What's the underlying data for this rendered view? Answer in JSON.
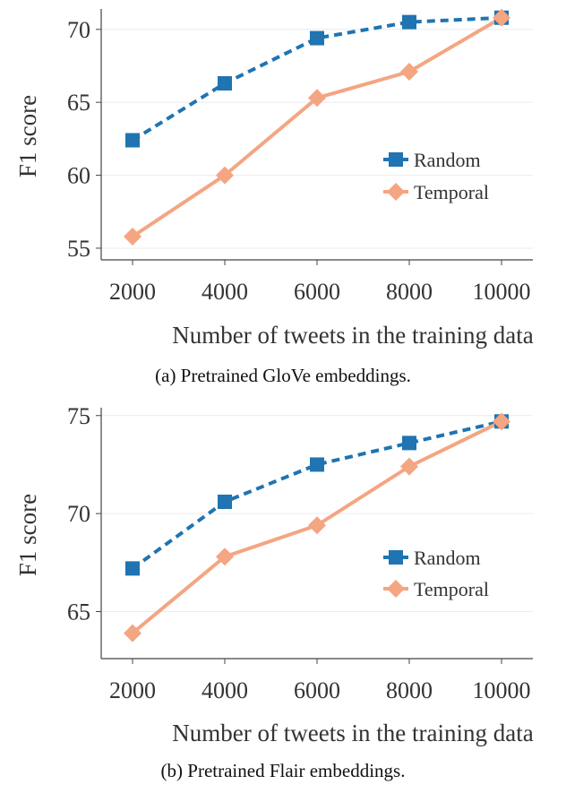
{
  "colors": {
    "random": "#1f74b1",
    "temporal": "#f4a582",
    "axis": "#444444",
    "grid": "#ececec",
    "text": "#333333"
  },
  "chart_data": [
    {
      "type": "line",
      "caption": "(a) Pretrained GloVe embeddings.",
      "xlabel": "Number of tweets in the training data",
      "ylabel": "F1 score",
      "x": [
        2000,
        4000,
        6000,
        8000,
        10000
      ],
      "x_tick_labels": [
        "2000",
        "4000",
        "6000",
        "8000",
        "10000"
      ],
      "y_ticks": [
        55,
        60,
        65,
        70
      ],
      "ylim": [
        54.2,
        71.4
      ],
      "grid": "horizontal",
      "legend_position": "right",
      "series": [
        {
          "name": "Random",
          "values": [
            62.4,
            66.3,
            69.4,
            70.5,
            70.8
          ],
          "line_style": "dashed",
          "marker": "square",
          "color": "#1f74b1"
        },
        {
          "name": "Temporal",
          "values": [
            55.8,
            60.0,
            65.3,
            67.1,
            70.8
          ],
          "line_style": "solid",
          "marker": "diamond",
          "color": "#f4a582"
        }
      ]
    },
    {
      "type": "line",
      "caption": "(b) Pretrained Flair embeddings.",
      "xlabel": "Number of tweets in the training data",
      "ylabel": "F1 score",
      "x": [
        2000,
        4000,
        6000,
        8000,
        10000
      ],
      "x_tick_labels": [
        "2000",
        "4000",
        "6000",
        "8000",
        "10000"
      ],
      "y_ticks": [
        65,
        70,
        75
      ],
      "ylim": [
        62.6,
        75.4
      ],
      "grid": "horizontal",
      "legend_position": "right",
      "series": [
        {
          "name": "Random",
          "values": [
            67.2,
            70.6,
            72.5,
            73.6,
            74.7
          ],
          "line_style": "dashed",
          "marker": "square",
          "color": "#1f74b1"
        },
        {
          "name": "Temporal",
          "values": [
            63.9,
            67.8,
            69.4,
            72.4,
            74.7
          ],
          "line_style": "solid",
          "marker": "diamond",
          "color": "#f4a582"
        }
      ]
    }
  ]
}
